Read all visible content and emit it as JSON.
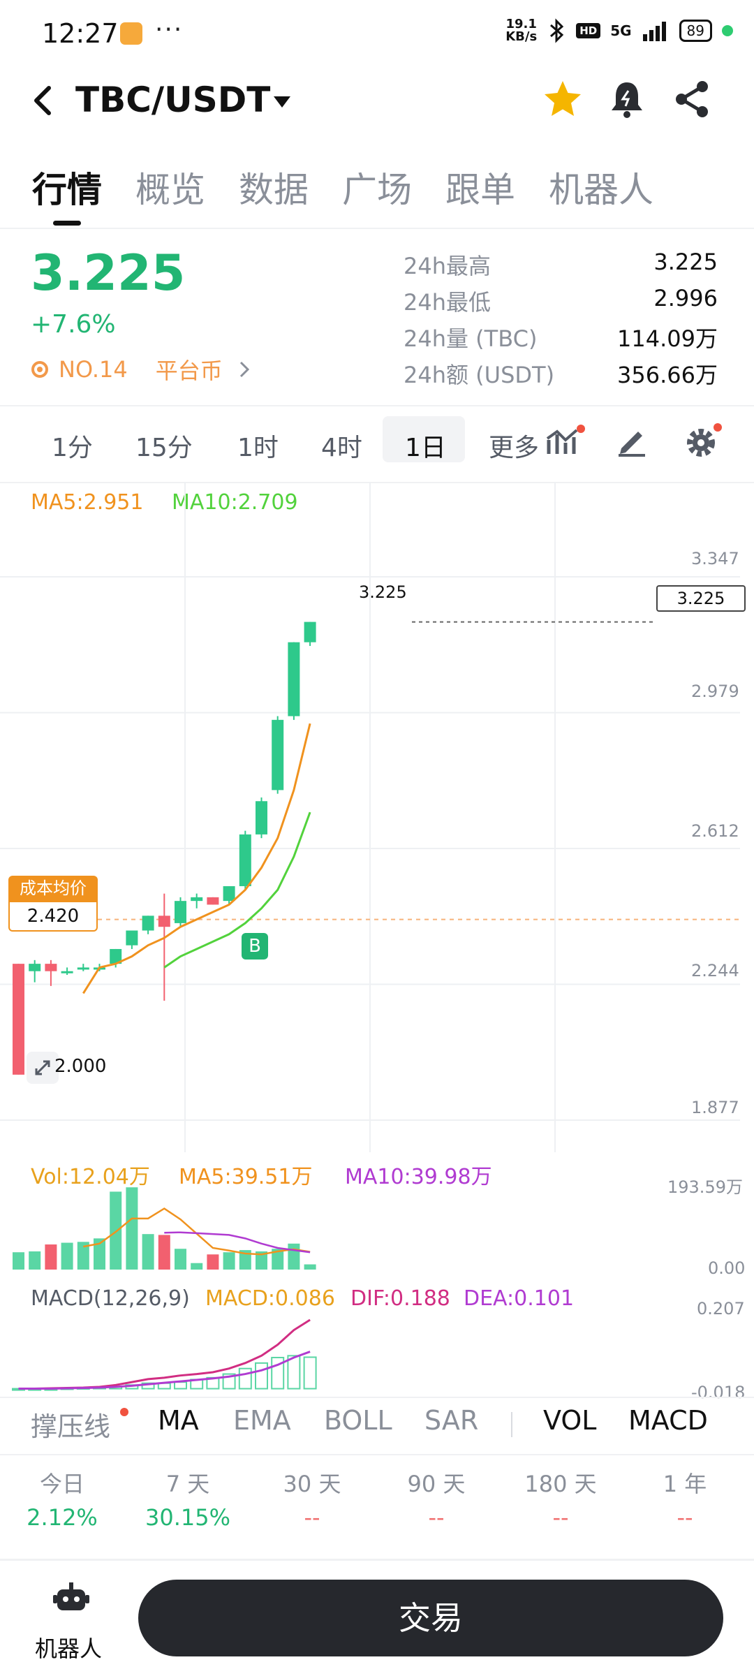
{
  "status_bar": {
    "time": "12:27",
    "speed_top": "19.1",
    "speed_bottom": "KB/s",
    "hd": "HD",
    "network": "5G",
    "battery": "89"
  },
  "header": {
    "pair": "TBC/USDT",
    "icons": [
      "back-arrow-icon",
      "dropdown-caret-icon",
      "star-icon",
      "bell-icon",
      "share-icon"
    ],
    "star_color": "#f5b500"
  },
  "tabs": [
    "行情",
    "概览",
    "数据",
    "广场",
    "跟单",
    "机器人"
  ],
  "summary": {
    "price": "3.225",
    "change": "+7.6%",
    "rank": "NO.14",
    "category": "平台币",
    "stats": [
      {
        "label": "24h最高",
        "value": "3.225"
      },
      {
        "label": "24h最低",
        "value": "2.996"
      },
      {
        "label": "24h量 (TBC)",
        "value": "114.09万"
      },
      {
        "label": "24h额 (USDT)",
        "value": "356.66万"
      }
    ]
  },
  "intervals": [
    "1分",
    "15分",
    "1时",
    "4时",
    "1日",
    "更多"
  ],
  "active_interval": "1日",
  "chart_tools": [
    "indicator-icon",
    "draw-pencil-icon",
    "settings-gear-icon"
  ],
  "ma_legend": {
    "ma5": "MA5:2.951",
    "ma10": "MA10:2.709"
  },
  "ma_colors": {
    "ma5": "#f0921e",
    "ma10": "#52d23c"
  },
  "price_axis": [
    "3.347",
    "2.979",
    "2.612",
    "2.244",
    "1.877"
  ],
  "current_price_tag": "3.225",
  "high_label": "3.225",
  "low_label": "2.000",
  "cost_badge": {
    "title": "成本均价",
    "value": "2.420"
  },
  "buy_marker": "B",
  "volume_legend": {
    "vol": "Vol:12.04万",
    "ma5": "MA5:39.51万",
    "ma10": "MA10:39.98万"
  },
  "volume_axis": [
    "193.59万",
    "0.00"
  ],
  "macd_legend": {
    "name": "MACD(12,26,9)",
    "macd": "MACD:0.086",
    "dif": "DIF:0.188",
    "dea": "DEA:0.101"
  },
  "macd_axis": [
    "0.207",
    "-0.018"
  ],
  "indicator_tabs": {
    "support": "撑压线",
    "left": [
      "MA",
      "EMA",
      "BOLL",
      "SAR"
    ],
    "right": [
      "VOL",
      "MACD"
    ]
  },
  "performance": [
    {
      "label": "今日",
      "value": "2.12%"
    },
    {
      "label": "7 天",
      "value": "30.15%"
    },
    {
      "label": "30 天",
      "value": "--"
    },
    {
      "label": "90 天",
      "value": "--"
    },
    {
      "label": "180 天",
      "value": "--"
    },
    {
      "label": "1 年",
      "value": "--"
    }
  ],
  "bottom": {
    "robot_label": "机器人",
    "trade_button": "交易"
  },
  "chart_data": {
    "type": "candlestick",
    "interval": "1日",
    "y_range": [
      1.877,
      3.347
    ],
    "candles": [
      {
        "o": 2.3,
        "h": 2.3,
        "l": 2.0,
        "c": 2.0,
        "up": false
      },
      {
        "o": 2.3,
        "h": 2.31,
        "l": 2.25,
        "c": 2.28,
        "up": true
      },
      {
        "o": 2.3,
        "h": 2.31,
        "l": 2.24,
        "c": 2.28,
        "up": false
      },
      {
        "o": 2.28,
        "h": 2.29,
        "l": 2.27,
        "c": 2.28,
        "up": true
      },
      {
        "o": 2.29,
        "h": 2.3,
        "l": 2.28,
        "c": 2.29,
        "up": true
      },
      {
        "o": 2.29,
        "h": 2.3,
        "l": 2.28,
        "c": 2.29,
        "up": true
      },
      {
        "o": 2.3,
        "h": 2.34,
        "l": 2.29,
        "c": 2.34,
        "up": true
      },
      {
        "o": 2.35,
        "h": 2.39,
        "l": 2.34,
        "c": 2.39,
        "up": true
      },
      {
        "o": 2.39,
        "h": 2.43,
        "l": 2.38,
        "c": 2.43,
        "up": true
      },
      {
        "o": 2.43,
        "h": 2.49,
        "l": 2.2,
        "c": 2.4,
        "up": false
      },
      {
        "o": 2.41,
        "h": 2.48,
        "l": 2.4,
        "c": 2.47,
        "up": true
      },
      {
        "o": 2.47,
        "h": 2.49,
        "l": 2.45,
        "c": 2.48,
        "up": true
      },
      {
        "o": 2.48,
        "h": 2.48,
        "l": 2.46,
        "c": 2.46,
        "up": false
      },
      {
        "o": 2.47,
        "h": 2.51,
        "l": 2.46,
        "c": 2.51,
        "up": true
      },
      {
        "o": 2.51,
        "h": 2.66,
        "l": 2.5,
        "c": 2.65,
        "up": true
      },
      {
        "o": 2.65,
        "h": 2.75,
        "l": 2.64,
        "c": 2.74,
        "up": true
      },
      {
        "o": 2.77,
        "h": 2.97,
        "l": 2.76,
        "c": 2.96,
        "up": true
      },
      {
        "o": 2.97,
        "h": 3.17,
        "l": 2.96,
        "c": 3.17,
        "up": true
      },
      {
        "o": 3.17,
        "h": 3.225,
        "l": 3.16,
        "c": 3.225,
        "up": true
      }
    ],
    "ma5": [
      null,
      null,
      null,
      null,
      2.22,
      2.29,
      2.3,
      2.32,
      2.35,
      2.37,
      2.4,
      2.42,
      2.44,
      2.46,
      2.5,
      2.56,
      2.64,
      2.77,
      2.95
    ],
    "ma10": [
      null,
      null,
      null,
      null,
      null,
      null,
      null,
      null,
      null,
      2.29,
      2.32,
      2.34,
      2.36,
      2.38,
      2.41,
      2.45,
      2.5,
      2.59,
      2.71
    ],
    "volume": {
      "y_range": [
        0,
        193.59
      ],
      "bars": [
        40,
        42,
        58,
        62,
        64,
        72,
        180,
        190,
        82,
        80,
        48,
        15,
        35,
        40,
        45,
        42,
        48,
        60,
        12
      ],
      "up": [
        true,
        true,
        false,
        true,
        true,
        true,
        true,
        true,
        true,
        false,
        true,
        true,
        false,
        true,
        true,
        true,
        true,
        true,
        true
      ],
      "ma5": [
        null,
        null,
        null,
        null,
        53,
        60,
        87,
        118,
        118,
        141,
        116,
        83,
        50,
        44,
        37,
        35,
        42,
        47,
        41
      ],
      "ma10": [
        null,
        null,
        null,
        null,
        null,
        null,
        null,
        null,
        null,
        85,
        86,
        84,
        82,
        80,
        72,
        60,
        50,
        45,
        40
      ]
    },
    "macd": {
      "y_range": [
        -0.018,
        0.207
      ],
      "hist": [
        0,
        0,
        0,
        0.002,
        0.003,
        0.004,
        0.006,
        0.01,
        0.015,
        0.015,
        0.018,
        0.025,
        0.03,
        0.04,
        0.055,
        0.07,
        0.085,
        0.09,
        0.086
      ],
      "dif": [
        0,
        0,
        0.001,
        0.002,
        0.003,
        0.005,
        0.01,
        0.018,
        0.026,
        0.03,
        0.036,
        0.04,
        0.045,
        0.055,
        0.07,
        0.09,
        0.12,
        0.16,
        0.188
      ],
      "dea": [
        0,
        0,
        0,
        0.001,
        0.002,
        0.003,
        0.005,
        0.008,
        0.012,
        0.016,
        0.02,
        0.024,
        0.028,
        0.033,
        0.04,
        0.05,
        0.065,
        0.085,
        0.101
      ]
    }
  }
}
